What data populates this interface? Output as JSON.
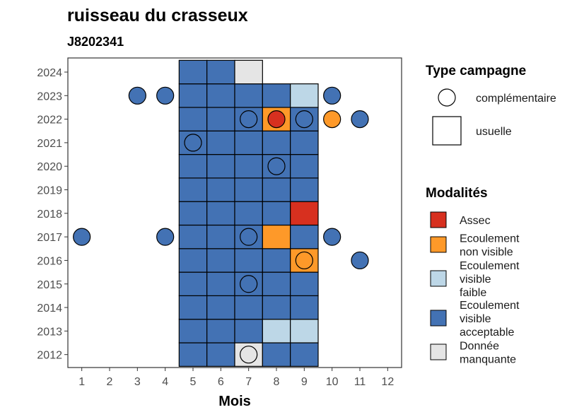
{
  "chart_data": {
    "type": "heatmap",
    "title": "ruisseau du crasseux",
    "subtitle": "J8202341",
    "xlabel": "Mois",
    "ylabel": "",
    "x_ticks": [
      "1",
      "2",
      "3",
      "4",
      "5",
      "6",
      "7",
      "8",
      "9",
      "10",
      "11",
      "12"
    ],
    "y_ticks": [
      "2012",
      "2013",
      "2014",
      "2015",
      "2016",
      "2017",
      "2018",
      "2019",
      "2020",
      "2021",
      "2022",
      "2023",
      "2024"
    ],
    "xlim": [
      0.5,
      12.5
    ],
    "ylim": [
      2011.45,
      2024.6
    ],
    "grid": false,
    "legend_position": "right",
    "modalites": [
      {
        "key": "assec",
        "label": "Assec",
        "color": "#d7301f"
      },
      {
        "key": "nonvisible",
        "label": "Ecoulement non visible",
        "color": "#fe9929"
      },
      {
        "key": "faible",
        "label": "Ecoulement visible faible",
        "color": "#bdd7e7"
      },
      {
        "key": "acceptable",
        "label": "Ecoulement visible acceptable",
        "color": "#4372b4"
      },
      {
        "key": "manquante",
        "label": "Donnée manquante",
        "color": "#e5e5e5"
      }
    ],
    "type_campagne": [
      {
        "key": "complementaire",
        "label": "complémentaire",
        "shape": "circle"
      },
      {
        "key": "usuelle",
        "label": "usuelle",
        "shape": "square"
      }
    ],
    "usuelle": [
      {
        "year": 2012,
        "months": [
          "acceptable",
          "acceptable",
          "manquante",
          "acceptable",
          "acceptable"
        ]
      },
      {
        "year": 2013,
        "months": [
          "acceptable",
          "acceptable",
          "acceptable",
          "faible",
          "faible"
        ]
      },
      {
        "year": 2014,
        "months": [
          "acceptable",
          "acceptable",
          "acceptable",
          "acceptable",
          "acceptable"
        ]
      },
      {
        "year": 2015,
        "months": [
          "acceptable",
          "acceptable",
          "acceptable",
          "acceptable",
          "acceptable"
        ]
      },
      {
        "year": 2016,
        "months": [
          "acceptable",
          "acceptable",
          "acceptable",
          "acceptable",
          "nonvisible"
        ]
      },
      {
        "year": 2017,
        "months": [
          "acceptable",
          "acceptable",
          "acceptable",
          "nonvisible",
          "acceptable"
        ]
      },
      {
        "year": 2018,
        "months": [
          "acceptable",
          "acceptable",
          "acceptable",
          "acceptable",
          "assec"
        ]
      },
      {
        "year": 2019,
        "months": [
          "acceptable",
          "acceptable",
          "acceptable",
          "acceptable",
          "acceptable"
        ]
      },
      {
        "year": 2020,
        "months": [
          "acceptable",
          "acceptable",
          "acceptable",
          "acceptable",
          "acceptable"
        ]
      },
      {
        "year": 2021,
        "months": [
          "acceptable",
          "acceptable",
          "acceptable",
          "acceptable",
          "acceptable"
        ]
      },
      {
        "year": 2022,
        "months": [
          "acceptable",
          "acceptable",
          "acceptable",
          "nonvisible",
          "acceptable"
        ]
      },
      {
        "year": 2023,
        "months": [
          "acceptable",
          "acceptable",
          "acceptable",
          "acceptable",
          "faible"
        ]
      },
      {
        "year": 2024,
        "months": [
          "acceptable",
          "acceptable",
          "manquante",
          null,
          null
        ]
      }
    ],
    "usuelle_first_month": 5,
    "complementaire": [
      {
        "month": 3,
        "year": 2023,
        "modalite": "acceptable"
      },
      {
        "month": 4,
        "year": 2023,
        "modalite": "acceptable"
      },
      {
        "month": 10,
        "year": 2023,
        "modalite": "acceptable"
      },
      {
        "month": 7,
        "year": 2022,
        "modalite": "acceptable"
      },
      {
        "month": 8,
        "year": 2022,
        "modalite": "assec"
      },
      {
        "month": 9,
        "year": 2022,
        "modalite": "acceptable"
      },
      {
        "month": 10,
        "year": 2022,
        "modalite": "nonvisible"
      },
      {
        "month": 11,
        "year": 2022,
        "modalite": "acceptable"
      },
      {
        "month": 5,
        "year": 2021,
        "modalite": "acceptable"
      },
      {
        "month": 8,
        "year": 2020,
        "modalite": "acceptable"
      },
      {
        "month": 1,
        "year": 2017,
        "modalite": "acceptable"
      },
      {
        "month": 4,
        "year": 2017,
        "modalite": "acceptable"
      },
      {
        "month": 7,
        "year": 2017,
        "modalite": "acceptable"
      },
      {
        "month": 10,
        "year": 2017,
        "modalite": "acceptable"
      },
      {
        "month": 9,
        "year": 2016,
        "modalite": "nonvisible"
      },
      {
        "month": 11,
        "year": 2016,
        "modalite": "acceptable"
      },
      {
        "month": 7,
        "year": 2015,
        "modalite": "acceptable"
      },
      {
        "month": 7,
        "year": 2012,
        "modalite": "manquante"
      }
    ]
  },
  "legend": {
    "type_campagne_title": "Type campagne",
    "modalites_title": "Modalités",
    "type_campagne_lines": [
      [
        "complémentaire"
      ],
      [
        "usuelle"
      ]
    ],
    "modalites_lines": [
      [
        "Assec"
      ],
      [
        "Ecoulement",
        "non visible"
      ],
      [
        "Ecoulement",
        "visible",
        "faible"
      ],
      [
        "Ecoulement",
        "visible",
        "acceptable"
      ],
      [
        "Donnée",
        "manquante"
      ]
    ]
  }
}
